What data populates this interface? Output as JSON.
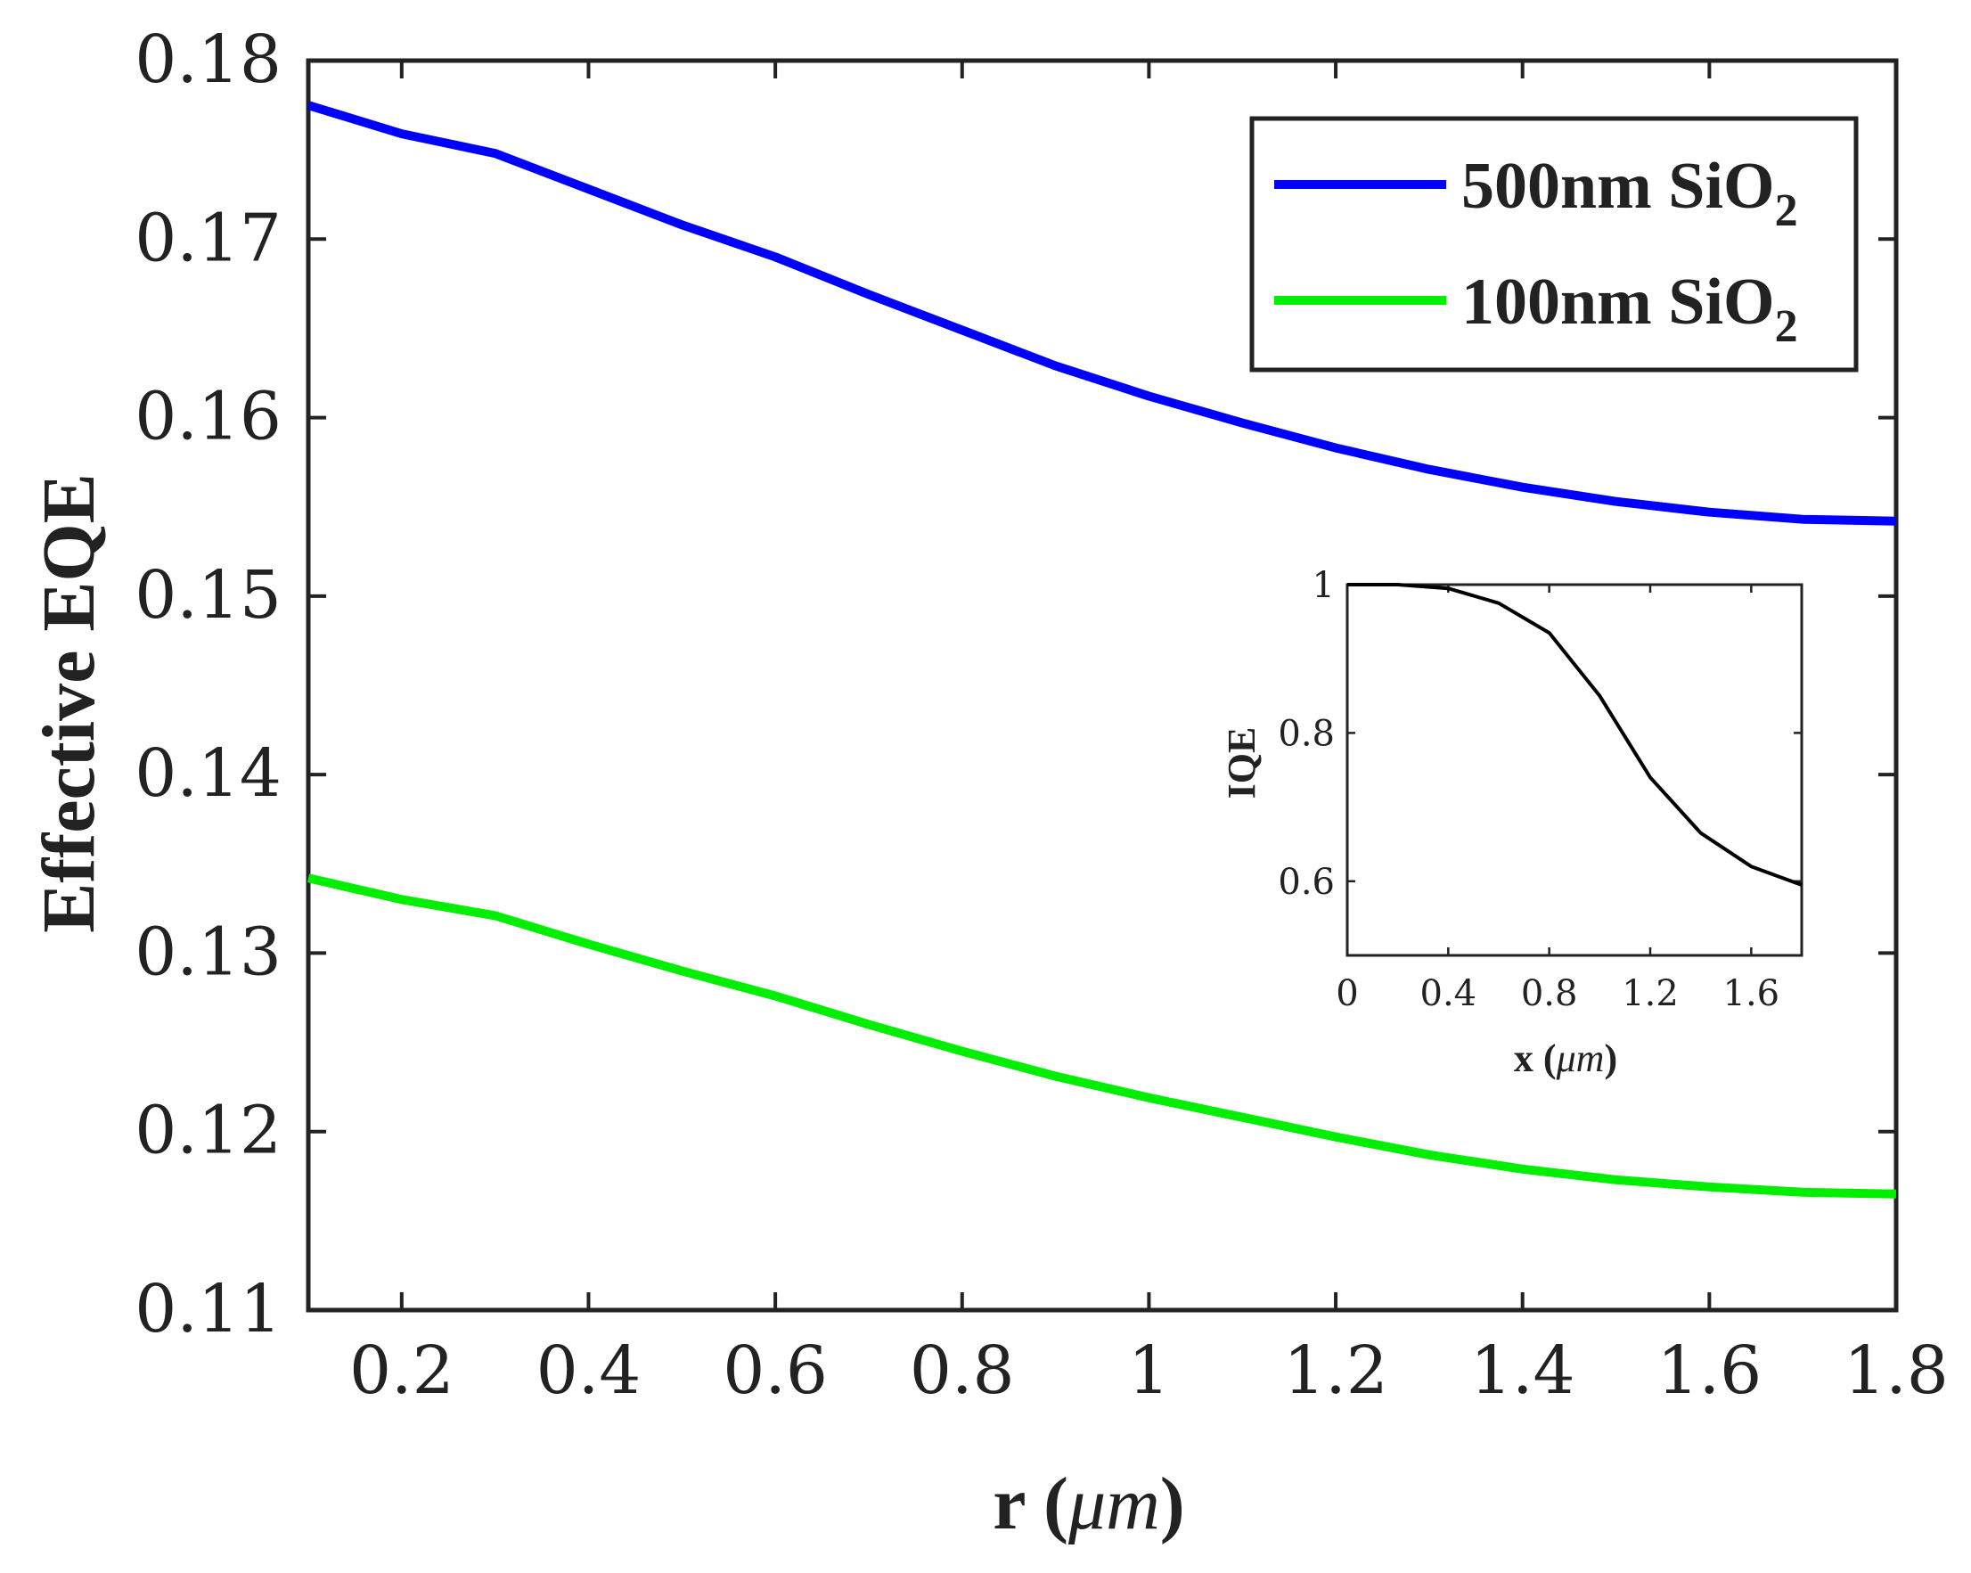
{
  "chart_data": [
    {
      "type": "line",
      "title": "",
      "xlabel_main": "r (",
      "xlabel_unit": "μm",
      "xlabel_close": ")",
      "ylabel": "Effective EQE",
      "xlim": [
        0.1,
        1.8
      ],
      "ylim": [
        0.11,
        0.18
      ],
      "grid": false,
      "legend_position": "top-right",
      "x_ticks": [
        0.2,
        0.4,
        0.6,
        0.8,
        1.0,
        1.2,
        1.4,
        1.6,
        1.8
      ],
      "x_tick_labels": [
        "0.2",
        "0.4",
        "0.6",
        "0.8",
        "1",
        "1.2",
        "1.4",
        "1.6",
        "1.8"
      ],
      "y_ticks": [
        0.11,
        0.12,
        0.13,
        0.14,
        0.15,
        0.16,
        0.17,
        0.18
      ],
      "y_tick_labels": [
        "0.11",
        "0.12",
        "0.13",
        "0.14",
        "0.15",
        "0.16",
        "0.17",
        "0.18"
      ],
      "x": [
        0.1,
        0.2,
        0.3,
        0.4,
        0.5,
        0.6,
        0.7,
        0.8,
        0.9,
        1.0,
        1.1,
        1.2,
        1.3,
        1.4,
        1.5,
        1.6,
        1.7,
        1.8
      ],
      "series": [
        {
          "name_main": "500nm SiO",
          "name_sub": "2",
          "color": "#0000ff",
          "values": [
            0.1775,
            0.1759,
            0.1748,
            0.1728,
            0.1708,
            0.169,
            0.1669,
            0.1649,
            0.1629,
            0.1612,
            0.1597,
            0.1583,
            0.1571,
            0.1561,
            0.1553,
            0.1547,
            0.1543,
            0.1542
          ]
        },
        {
          "name_main": "100nm SiO",
          "name_sub": "2",
          "color": "#00ee00",
          "values": [
            0.1342,
            0.133,
            0.1321,
            0.1305,
            0.129,
            0.1276,
            0.126,
            0.1245,
            0.1231,
            0.1219,
            0.1208,
            0.1197,
            0.1187,
            0.1179,
            0.1173,
            0.1169,
            0.1166,
            0.1165
          ]
        }
      ]
    },
    {
      "type": "line",
      "title": "",
      "xlabel_main": "x (",
      "xlabel_unit": "μm",
      "xlabel_close": ")",
      "ylabel": "IQE",
      "xlim": [
        0,
        1.8
      ],
      "ylim": [
        0.5,
        1.0
      ],
      "grid": false,
      "x_ticks": [
        0,
        0.4,
        0.8,
        1.2,
        1.6
      ],
      "x_tick_labels": [
        "0",
        "0.4",
        "0.8",
        "1.2",
        "1.6"
      ],
      "y_ticks": [
        0.6,
        0.8,
        1.0
      ],
      "y_tick_labels": [
        "0.6",
        "0.8",
        "1"
      ],
      "x": [
        0,
        0.2,
        0.4,
        0.6,
        0.8,
        1.0,
        1.2,
        1.4,
        1.6,
        1.8
      ],
      "series": [
        {
          "name": "IQE",
          "color": "#000000",
          "values": [
            1.0,
            1.0,
            0.995,
            0.975,
            0.935,
            0.85,
            0.74,
            0.665,
            0.62,
            0.595
          ]
        }
      ]
    }
  ]
}
